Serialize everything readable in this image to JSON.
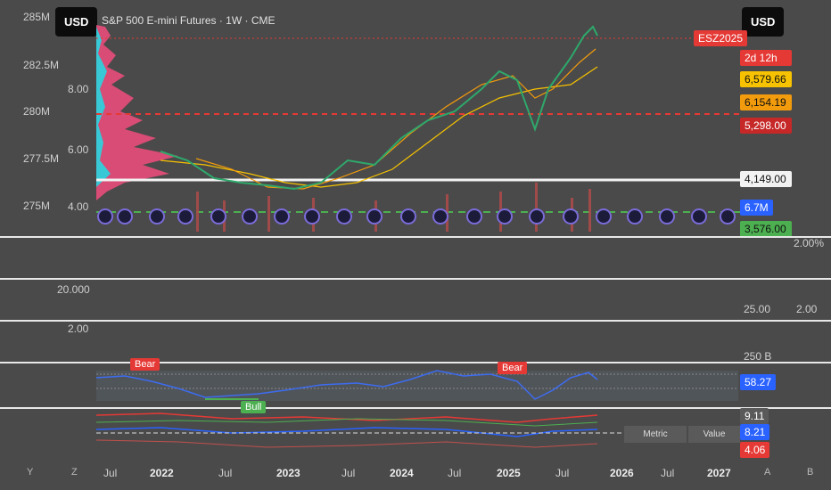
{
  "header": {
    "left_currency": "USD",
    "right_currency": "USD",
    "title": "S&P 500 E-mini Futures · 1W · CME"
  },
  "left_axis_volume": [
    "285M",
    "282.5M",
    "280M",
    "277.5M",
    "275M"
  ],
  "left_axis_inner": [
    "8.00",
    "6.00",
    "4.00"
  ],
  "price_tags": {
    "symbol": "ESZ2025",
    "countdown": "2d 12h",
    "p1": "6,579.66",
    "p2": "6,154.19",
    "p3": "5,298.00",
    "p4": "4,149.00",
    "vol": "6.7M",
    "p5": "3,576.00"
  },
  "colors": {
    "tag_red": "#e53935",
    "tag_orange": "#f29b0c",
    "tag_yellow": "#f7c200",
    "tag_darkred": "#c62828",
    "tag_white": "#f2f2f2",
    "tag_blue": "#2962ff",
    "tag_green": "#4caf50"
  },
  "pane2": {
    "right_label": "2.00%"
  },
  "pane3": {
    "left_top": "20.000",
    "left_bottom": "2.00",
    "right_a": "25.00",
    "right_b": "2.00"
  },
  "pane4": {
    "right_top": "250 B",
    "value": "58.27",
    "bear1": "Bear",
    "bear2": "Bear",
    "bull": "Bull"
  },
  "pane5": {
    "v1": "9.11",
    "v2": "8.21",
    "v3": "4.06",
    "metric": "Metric",
    "value": "Value"
  },
  "x_axis": [
    {
      "label": "Jul",
      "bold": false
    },
    {
      "label": "2022",
      "bold": true
    },
    {
      "label": "Jul",
      "bold": false
    },
    {
      "label": "2023",
      "bold": true
    },
    {
      "label": "Jul",
      "bold": false
    },
    {
      "label": "2024",
      "bold": true
    },
    {
      "label": "Jul",
      "bold": false
    },
    {
      "label": "2025",
      "bold": true
    },
    {
      "label": "Jul",
      "bold": false
    },
    {
      "label": "2026",
      "bold": true
    },
    {
      "label": "Jul",
      "bold": false
    },
    {
      "label": "2027",
      "bold": true
    }
  ],
  "corners": {
    "y": "Y",
    "z": "Z",
    "a": "A",
    "b": "B"
  }
}
